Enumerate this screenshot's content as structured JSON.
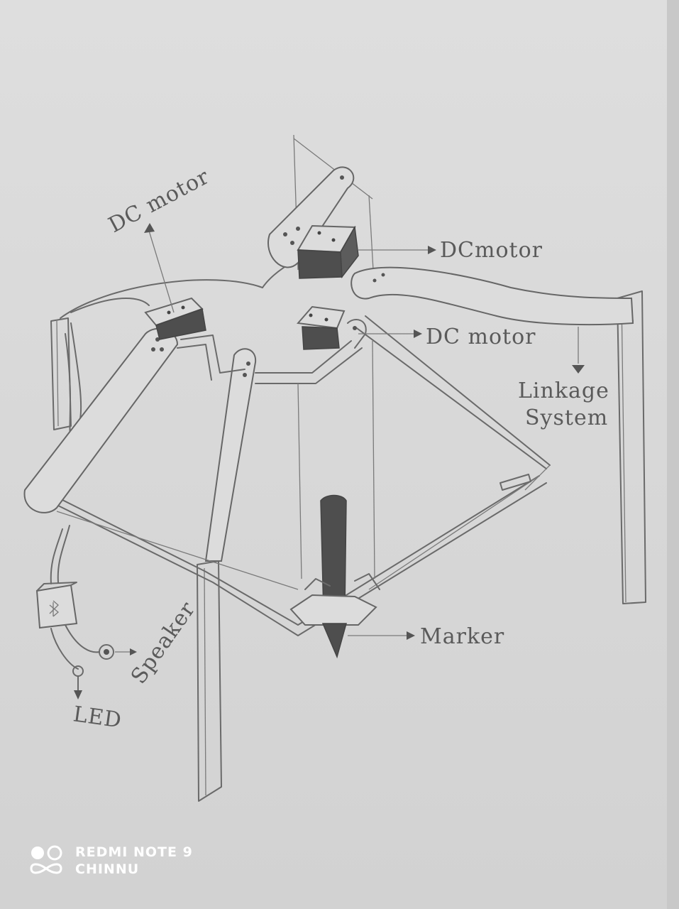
{
  "labels": {
    "dc_motor_left": "DC motor",
    "dc_motor_top": "DCmotor",
    "dc_motor_mid": "DC motor",
    "linkage": "Linkage",
    "system": "System",
    "marker": "Marker",
    "speaker": "Speaker",
    "led": "LED"
  },
  "watermark": {
    "line1": "REDMI NOTE 9",
    "line2": "CHINNU"
  },
  "colors": {
    "paper": "#dcdcdc",
    "pencil": "#6a6a6a",
    "shading": "#4e4e4e"
  }
}
